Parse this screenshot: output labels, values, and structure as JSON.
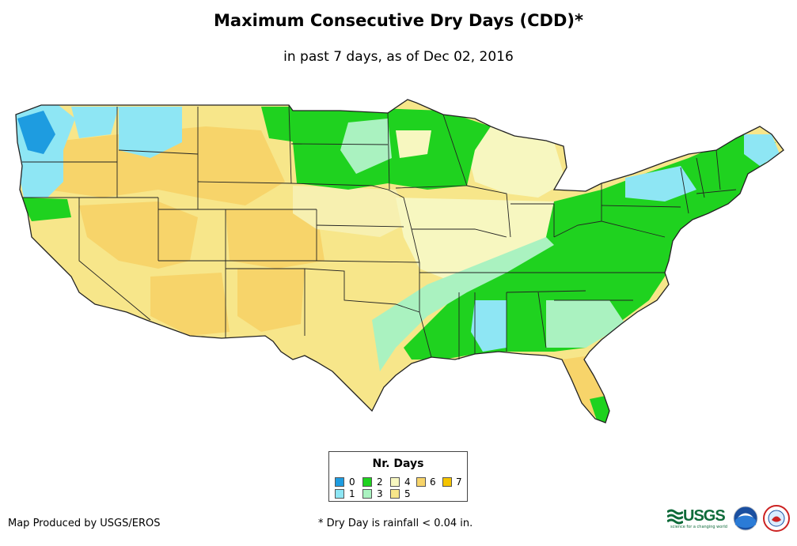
{
  "title": "Maximum Consecutive Dry Days (CDD)*",
  "subtitle": "in past 7 days, as of Dec 02, 2016",
  "legend": {
    "title": "Nr. Days",
    "items": [
      {
        "label": "0",
        "color": "#1e9ce0"
      },
      {
        "label": "1",
        "color": "#8ee6f4"
      },
      {
        "label": "2",
        "color": "#1fd21f"
      },
      {
        "label": "3",
        "color": "#aaf2c0"
      },
      {
        "label": "4",
        "color": "#f7f7c0"
      },
      {
        "label": "5",
        "color": "#f7e68a"
      },
      {
        "label": "6",
        "color": "#f7d46a"
      },
      {
        "label": "7",
        "color": "#f5c400"
      }
    ]
  },
  "footer": {
    "producer": "Map Produced by USGS/EROS",
    "note": "* Dry Day is rainfall < 0.04 in."
  },
  "logos": {
    "usgs": "USGS",
    "usgs_tagline": "science for a changing world",
    "noaa_icon": "noaa-logo-icon",
    "nws_icon": "national-weather-service-logo-icon"
  }
}
